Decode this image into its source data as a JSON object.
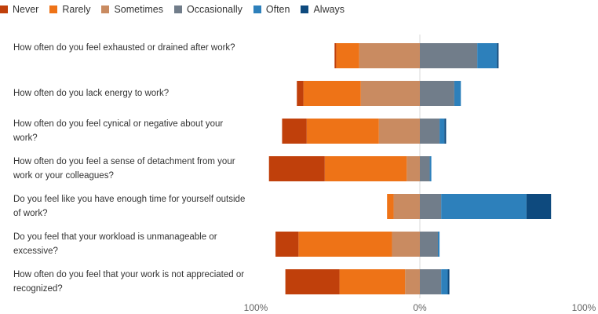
{
  "chart_data": {
    "type": "bar",
    "orientation": "horizontal",
    "stacked": "diverging",
    "legend_position": "top-left",
    "grid": false,
    "series": [
      {
        "name": "Never",
        "color": "#c0400b"
      },
      {
        "name": "Rarely",
        "color": "#ee7317"
      },
      {
        "name": "Sometimes",
        "color": "#c98b61"
      },
      {
        "name": "Occasionally",
        "color": "#717d8a"
      },
      {
        "name": "Often",
        "color": "#2d80bb"
      },
      {
        "name": "Always",
        "color": "#0e4a7e"
      }
    ],
    "categories": [
      "How often do you feel exhausted or drained after work?",
      "How often do you lack energy to work?",
      "How often do you feel cynical or negative about your work?",
      "How often do you feel a sense of detachment from your work or your colleagues?",
      "Do you feel like you have enough time for yourself outside of work?",
      "Do you feel that your workload is unmanageable or excessive?",
      "How often do you feel that your work is not appreciated or recognized?"
    ],
    "negative_series": [
      "Never",
      "Rarely",
      "Sometimes"
    ],
    "positive_series": [
      "Occasionally",
      "Often",
      "Always"
    ],
    "values": [
      {
        "Never": 1,
        "Rarely": 14,
        "Sometimes": 37,
        "Occasionally": 35,
        "Often": 12,
        "Always": 1
      },
      {
        "Never": 4,
        "Rarely": 35,
        "Sometimes": 36,
        "Occasionally": 21,
        "Often": 4,
        "Always": 0
      },
      {
        "Never": 15,
        "Rarely": 44,
        "Sometimes": 25,
        "Occasionally": 12,
        "Often": 3,
        "Always": 1
      },
      {
        "Never": 34,
        "Rarely": 50,
        "Sometimes": 8,
        "Occasionally": 6,
        "Often": 1,
        "Always": 0
      },
      {
        "Never": 0,
        "Rarely": 4,
        "Sometimes": 16,
        "Occasionally": 13,
        "Often": 52,
        "Always": 15
      },
      {
        "Never": 14,
        "Rarely": 57,
        "Sometimes": 17,
        "Occasionally": 11,
        "Often": 1,
        "Always": 0
      },
      {
        "Never": 33,
        "Rarely": 40,
        "Sometimes": 9,
        "Occasionally": 13,
        "Often": 4,
        "Always": 1
      }
    ],
    "x_ticks": [
      "100%",
      "0%",
      "100%"
    ],
    "xlim": [
      -100,
      100
    ],
    "xlabel": "",
    "ylabel": "",
    "title": ""
  }
}
